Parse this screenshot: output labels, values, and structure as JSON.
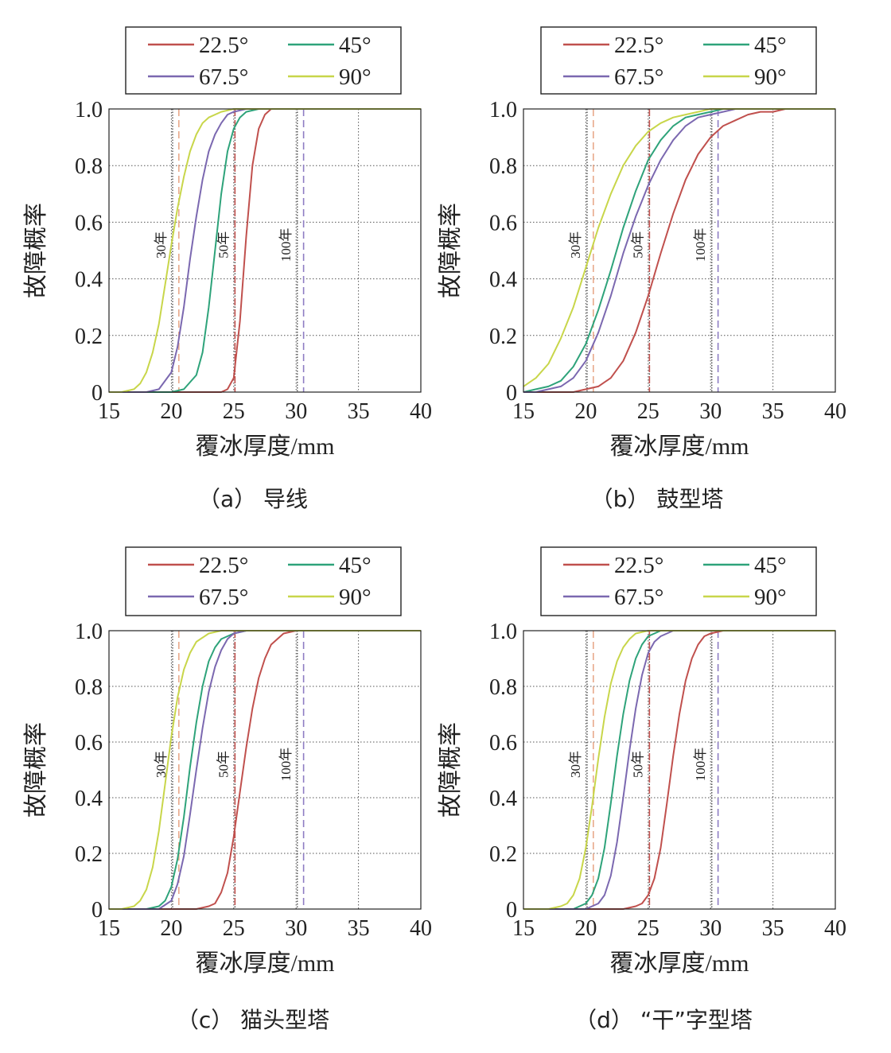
{
  "chart_data": [
    {
      "panel": "a",
      "type": "line",
      "caption": "（a） 导线",
      "xlabel": "覆冰厚度/mm",
      "ylabel": "故障概率",
      "xlim": [
        15,
        40
      ],
      "ylim": [
        0,
        1
      ],
      "xticks": [
        "15",
        "20",
        "25",
        "30",
        "35",
        "40"
      ],
      "yticks": [
        "0",
        "0.2",
        "0.4",
        "0.6",
        "0.8",
        "1.0"
      ],
      "grid": true,
      "legend": [
        "22.5°",
        "45°",
        "67.5°",
        "90°"
      ],
      "return_periods": [
        {
          "label": "30年",
          "x": 20.1,
          "x_dash": 20.6
        },
        {
          "label": "50年",
          "x": 25.1,
          "x_dash": 25.1
        },
        {
          "label": "100年",
          "x": 30.1,
          "x_dash": 30.6
        }
      ],
      "series": [
        {
          "name": "22.5°",
          "color": "#c0504d",
          "x": [
            15,
            16,
            17,
            18,
            19,
            20,
            21,
            22,
            23,
            24,
            24.5,
            25,
            25.5,
            26,
            26.5,
            27,
            27.5,
            28,
            29,
            30,
            32,
            35,
            40
          ],
          "y": [
            0,
            0,
            0,
            0,
            0,
            0,
            0,
            0,
            0,
            0,
            0.01,
            0.05,
            0.25,
            0.55,
            0.8,
            0.93,
            0.98,
            1.0,
            1.0,
            1.0,
            1.0,
            1.0,
            1.0
          ]
        },
        {
          "name": "45°",
          "color": "#2ea37a",
          "x": [
            15,
            16,
            17,
            18,
            19,
            20,
            21,
            22,
            22.5,
            23,
            23.5,
            24,
            24.5,
            25,
            25.5,
            26,
            27,
            28,
            30,
            35,
            40
          ],
          "y": [
            0,
            0,
            0,
            0,
            0,
            0,
            0.01,
            0.06,
            0.14,
            0.3,
            0.5,
            0.7,
            0.85,
            0.93,
            0.97,
            0.99,
            1.0,
            1.0,
            1.0,
            1.0,
            1.0
          ]
        },
        {
          "name": "67.5°",
          "color": "#7b68b0",
          "x": [
            15,
            16,
            17,
            18,
            19,
            20,
            20.5,
            21,
            21.5,
            22,
            22.5,
            23,
            23.5,
            24,
            24.5,
            25,
            26,
            27,
            30,
            35,
            40
          ],
          "y": [
            0,
            0,
            0,
            0,
            0.01,
            0.07,
            0.16,
            0.3,
            0.47,
            0.62,
            0.75,
            0.85,
            0.91,
            0.95,
            0.98,
            0.99,
            1.0,
            1.0,
            1.0,
            1.0,
            1.0
          ]
        },
        {
          "name": "90°",
          "color": "#c8d64a",
          "x": [
            15,
            16,
            17,
            17.5,
            18,
            18.5,
            19,
            19.5,
            20,
            20.5,
            21,
            21.5,
            22,
            22.5,
            23,
            24,
            25,
            26,
            30,
            35,
            40
          ],
          "y": [
            0,
            0,
            0.01,
            0.03,
            0.07,
            0.14,
            0.24,
            0.38,
            0.52,
            0.65,
            0.76,
            0.85,
            0.91,
            0.95,
            0.97,
            0.99,
            1.0,
            1.0,
            1.0,
            1.0,
            1.0
          ]
        }
      ]
    },
    {
      "panel": "b",
      "type": "line",
      "caption": "（b） 鼓型塔",
      "xlabel": "覆冰厚度/mm",
      "ylabel": "故障概率",
      "xlim": [
        15,
        40
      ],
      "ylim": [
        0,
        1
      ],
      "xticks": [
        "15",
        "20",
        "25",
        "30",
        "35",
        "40"
      ],
      "yticks": [
        "0",
        "0.2",
        "0.4",
        "0.6",
        "0.8",
        "1.0"
      ],
      "grid": true,
      "legend": [
        "22.5°",
        "45°",
        "67.5°",
        "90°"
      ],
      "return_periods": [
        {
          "label": "30年",
          "x": 20.1,
          "x_dash": 20.6
        },
        {
          "label": "50年",
          "x": 25.1,
          "x_dash": 25.1
        },
        {
          "label": "100年",
          "x": 30.1,
          "x_dash": 30.6
        }
      ],
      "series": [
        {
          "name": "22.5°",
          "color": "#c0504d",
          "x": [
            15,
            17,
            19,
            20,
            21,
            22,
            23,
            24,
            25,
            26,
            27,
            28,
            29,
            30,
            31,
            32,
            33,
            34,
            35,
            36,
            38,
            40
          ],
          "y": [
            0,
            0,
            0,
            0.01,
            0.02,
            0.05,
            0.11,
            0.21,
            0.34,
            0.49,
            0.63,
            0.75,
            0.84,
            0.9,
            0.94,
            0.96,
            0.98,
            0.99,
            0.99,
            1.0,
            1.0,
            1.0
          ]
        },
        {
          "name": "45°",
          "color": "#2ea37a",
          "x": [
            15,
            16,
            17,
            18,
            19,
            20,
            21,
            22,
            23,
            24,
            25,
            26,
            27,
            28,
            29,
            30,
            31,
            32,
            34,
            36,
            40
          ],
          "y": [
            0,
            0.01,
            0.02,
            0.04,
            0.09,
            0.17,
            0.29,
            0.43,
            0.58,
            0.71,
            0.82,
            0.89,
            0.94,
            0.97,
            0.98,
            0.99,
            1.0,
            1.0,
            1.0,
            1.0,
            1.0
          ]
        },
        {
          "name": "67.5°",
          "color": "#7b68b0",
          "x": [
            15,
            16,
            17,
            18,
            19,
            20,
            21,
            22,
            23,
            24,
            25,
            26,
            27,
            28,
            29,
            30,
            31,
            32,
            34,
            36,
            40
          ],
          "y": [
            0,
            0,
            0.01,
            0.02,
            0.05,
            0.11,
            0.21,
            0.34,
            0.49,
            0.62,
            0.73,
            0.82,
            0.89,
            0.94,
            0.97,
            0.98,
            0.99,
            1.0,
            1.0,
            1.0,
            1.0
          ]
        },
        {
          "name": "90°",
          "color": "#c8d64a",
          "x": [
            15,
            16,
            17,
            18,
            19,
            20,
            21,
            22,
            23,
            24,
            25,
            26,
            27,
            28,
            29,
            30,
            32,
            34,
            36,
            40
          ],
          "y": [
            0.02,
            0.05,
            0.1,
            0.19,
            0.3,
            0.44,
            0.58,
            0.7,
            0.8,
            0.87,
            0.92,
            0.95,
            0.97,
            0.98,
            0.99,
            1.0,
            1.0,
            1.0,
            1.0,
            1.0
          ]
        }
      ]
    },
    {
      "panel": "c",
      "type": "line",
      "caption": "（c） 猫头型塔",
      "xlabel": "覆冰厚度/mm",
      "ylabel": "故障概率",
      "xlim": [
        15,
        40
      ],
      "ylim": [
        0,
        1
      ],
      "xticks": [
        "15",
        "20",
        "25",
        "30",
        "35",
        "40"
      ],
      "yticks": [
        "0",
        "0.2",
        "0.4",
        "0.6",
        "0.8",
        "1.0"
      ],
      "grid": true,
      "legend": [
        "22.5°",
        "45°",
        "67.5°",
        "90°"
      ],
      "return_periods": [
        {
          "label": "30年",
          "x": 20.1,
          "x_dash": 20.6
        },
        {
          "label": "50年",
          "x": 25.1,
          "x_dash": 25.1
        },
        {
          "label": "100年",
          "x": 30.1,
          "x_dash": 30.6
        }
      ],
      "series": [
        {
          "name": "22.5°",
          "color": "#c0504d",
          "x": [
            15,
            18,
            20,
            21,
            22,
            23,
            23.5,
            24,
            24.5,
            25,
            25.5,
            26,
            26.5,
            27,
            27.5,
            28,
            29,
            30,
            32,
            35,
            40
          ],
          "y": [
            0,
            0,
            0,
            0,
            0,
            0.01,
            0.02,
            0.06,
            0.13,
            0.26,
            0.42,
            0.58,
            0.72,
            0.83,
            0.9,
            0.95,
            0.99,
            1.0,
            1.0,
            1.0,
            1.0
          ]
        },
        {
          "name": "45°",
          "color": "#2ea37a",
          "x": [
            15,
            17,
            18,
            19,
            19.5,
            20,
            20.5,
            21,
            21.5,
            22,
            22.5,
            23,
            23.5,
            24,
            25,
            26,
            28,
            30,
            35,
            40
          ],
          "y": [
            0,
            0,
            0,
            0.01,
            0.03,
            0.08,
            0.18,
            0.33,
            0.51,
            0.67,
            0.8,
            0.89,
            0.94,
            0.97,
            0.99,
            1.0,
            1.0,
            1.0,
            1.0,
            1.0
          ]
        },
        {
          "name": "67.5°",
          "color": "#7b68b0",
          "x": [
            15,
            17,
            18,
            19,
            20,
            20.5,
            21,
            21.5,
            22,
            22.5,
            23,
            23.5,
            24,
            24.5,
            25,
            26,
            28,
            30,
            35,
            40
          ],
          "y": [
            0,
            0,
            0,
            0,
            0.03,
            0.09,
            0.19,
            0.34,
            0.5,
            0.65,
            0.78,
            0.87,
            0.93,
            0.97,
            0.99,
            1.0,
            1.0,
            1.0,
            1.0,
            1.0
          ]
        },
        {
          "name": "90°",
          "color": "#c8d64a",
          "x": [
            15,
            16,
            17,
            17.5,
            18,
            18.5,
            19,
            19.5,
            20,
            20.5,
            21,
            21.5,
            22,
            23,
            24,
            26,
            30,
            35,
            40
          ],
          "y": [
            0,
            0,
            0.01,
            0.03,
            0.07,
            0.15,
            0.28,
            0.45,
            0.62,
            0.76,
            0.86,
            0.92,
            0.96,
            0.99,
            1.0,
            1.0,
            1.0,
            1.0,
            1.0
          ]
        }
      ]
    },
    {
      "panel": "d",
      "type": "line",
      "caption": "（d） “干”字型塔",
      "xlabel": "覆冰厚度/mm",
      "ylabel": "故障概率",
      "xlim": [
        15,
        40
      ],
      "ylim": [
        0,
        1
      ],
      "xticks": [
        "15",
        "20",
        "25",
        "30",
        "35",
        "40"
      ],
      "yticks": [
        "0",
        "0.2",
        "0.4",
        "0.6",
        "0.8",
        "1.0"
      ],
      "grid": true,
      "legend": [
        "22.5°",
        "45°",
        "67.5°",
        "90°"
      ],
      "return_periods": [
        {
          "label": "30年",
          "x": 20.1,
          "x_dash": 20.6
        },
        {
          "label": "50年",
          "x": 25.1,
          "x_dash": 25.1
        },
        {
          "label": "100年",
          "x": 30.1,
          "x_dash": 30.6
        }
      ],
      "series": [
        {
          "name": "22.5°",
          "color": "#c0504d",
          "x": [
            15,
            20,
            22,
            23,
            24,
            24.5,
            25,
            25.5,
            26,
            26.5,
            27,
            27.5,
            28,
            28.5,
            29,
            29.5,
            30,
            31,
            33,
            35,
            40
          ],
          "y": [
            0,
            0,
            0,
            0,
            0.01,
            0.02,
            0.05,
            0.11,
            0.22,
            0.38,
            0.55,
            0.7,
            0.82,
            0.9,
            0.95,
            0.98,
            0.99,
            1.0,
            1.0,
            1.0,
            1.0
          ]
        },
        {
          "name": "45°",
          "color": "#2ea37a",
          "x": [
            15,
            18,
            19,
            20,
            20.5,
            21,
            21.5,
            22,
            22.5,
            23,
            23.5,
            24,
            24.5,
            25,
            26,
            27,
            30,
            35,
            40
          ],
          "y": [
            0,
            0,
            0,
            0.02,
            0.05,
            0.11,
            0.22,
            0.38,
            0.55,
            0.7,
            0.82,
            0.9,
            0.95,
            0.98,
            1.0,
            1.0,
            1.0,
            1.0,
            1.0
          ]
        },
        {
          "name": "67.5°",
          "color": "#7b68b0",
          "x": [
            15,
            19,
            20,
            21,
            21.5,
            22,
            22.5,
            23,
            23.5,
            24,
            24.5,
            25,
            25.5,
            26,
            27,
            28,
            30,
            35,
            40
          ],
          "y": [
            0,
            0,
            0,
            0.02,
            0.05,
            0.12,
            0.24,
            0.4,
            0.57,
            0.72,
            0.84,
            0.92,
            0.96,
            0.98,
            1.0,
            1.0,
            1.0,
            1.0,
            1.0
          ]
        },
        {
          "name": "90°",
          "color": "#c8d64a",
          "x": [
            15,
            17,
            18,
            18.5,
            19,
            19.5,
            20,
            20.5,
            21,
            21.5,
            22,
            22.5,
            23,
            23.5,
            24,
            25,
            27,
            30,
            35,
            40
          ],
          "y": [
            0,
            0,
            0.01,
            0.02,
            0.05,
            0.11,
            0.22,
            0.37,
            0.54,
            0.69,
            0.81,
            0.89,
            0.94,
            0.97,
            0.99,
            1.0,
            1.0,
            1.0,
            1.0,
            1.0
          ]
        }
      ]
    }
  ]
}
